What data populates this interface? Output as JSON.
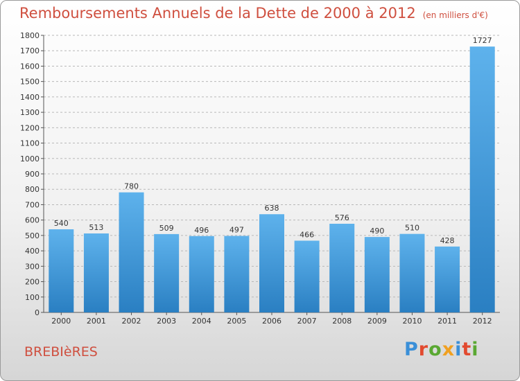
{
  "title": "Remboursements Annuels de la Dette de 2000 à 2012",
  "title_unit": "(en milliers d'€)",
  "commune": "BREBIèRES",
  "logo": {
    "text": "Proxiti",
    "letter_colors": [
      "#3a8fd8",
      "#e24a2f",
      "#5aa832",
      "#f0a020",
      "#3a8fd8",
      "#e24a2f",
      "#5aa832"
    ]
  },
  "colors": {
    "bar_top": "#5eb2ec",
    "bar_bottom": "#2a7fc2",
    "title": "#cf4f3f",
    "grid": "#b8b8b8"
  },
  "chart_data": {
    "type": "bar",
    "categories": [
      "2000",
      "2001",
      "2002",
      "2003",
      "2004",
      "2005",
      "2006",
      "2007",
      "2008",
      "2009",
      "2010",
      "2011",
      "2012"
    ],
    "values": [
      540,
      513,
      780,
      509,
      496,
      497,
      638,
      466,
      576,
      490,
      510,
      428,
      1727
    ],
    "ylim": [
      0,
      1800
    ],
    "yticks": [
      0,
      100,
      200,
      300,
      400,
      500,
      600,
      700,
      800,
      900,
      1000,
      1100,
      1200,
      1300,
      1400,
      1500,
      1600,
      1700,
      1800
    ],
    "grid": true,
    "grid_style": "dashed-horizontal"
  }
}
